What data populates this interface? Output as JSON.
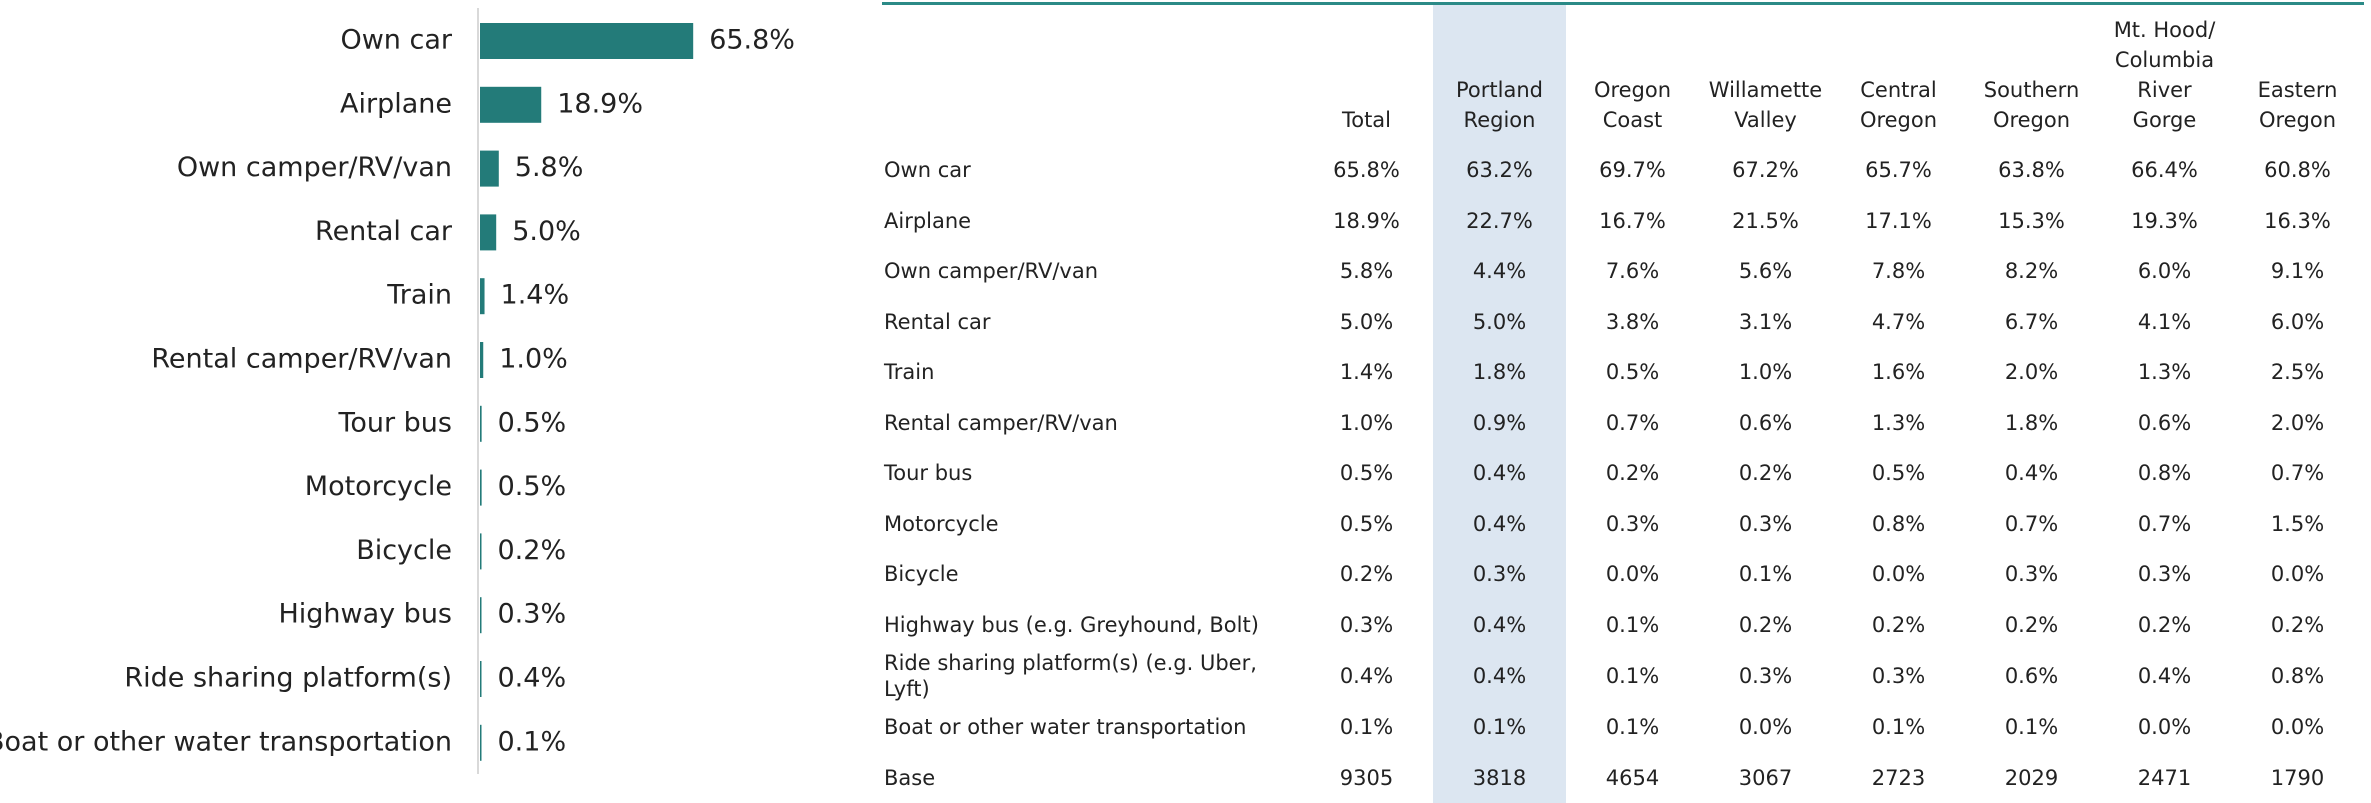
{
  "chart_data": {
    "type": "bar",
    "orientation": "horizontal",
    "categories": [
      "Own car",
      "Airplane",
      "Own camper/RV/van",
      "Rental car",
      "Train",
      "Rental camper/RV/van",
      "Tour bus",
      "Motorcycle",
      "Bicycle",
      "Highway bus",
      "Ride sharing platform(s)",
      "Boat or other water transportation"
    ],
    "values": [
      65.8,
      18.9,
      5.8,
      5.0,
      1.4,
      1.0,
      0.5,
      0.5,
      0.2,
      0.3,
      0.4,
      0.1
    ],
    "value_labels": [
      "65.8%",
      "18.9%",
      "5.8%",
      "5.0%",
      "1.4%",
      "1.0%",
      "0.5%",
      "0.5%",
      "0.2%",
      "0.3%",
      "0.4%",
      "0.1%"
    ],
    "color": "#237b79"
  },
  "table": {
    "columns": [
      "Total",
      "Portland Region",
      "Oregon Coast",
      "Willamette Valley",
      "Central Oregon",
      "Southern Oregon",
      "Mt. Hood/ Columbia River Gorge",
      "Eastern Oregon"
    ],
    "rows": [
      [
        "Own car",
        "65.8%",
        "63.2%",
        "69.7%",
        "67.2%",
        "65.7%",
        "63.8%",
        "66.4%",
        "60.8%"
      ],
      [
        "Airplane",
        "18.9%",
        "22.7%",
        "16.7%",
        "21.5%",
        "17.1%",
        "15.3%",
        "19.3%",
        "16.3%"
      ],
      [
        "Own camper/RV/van",
        "5.8%",
        "4.4%",
        "7.6%",
        "5.6%",
        "7.8%",
        "8.2%",
        "6.0%",
        "9.1%"
      ],
      [
        "Rental car",
        "5.0%",
        "5.0%",
        "3.8%",
        "3.1%",
        "4.7%",
        "6.7%",
        "4.1%",
        "6.0%"
      ],
      [
        "Train",
        "1.4%",
        "1.8%",
        "0.5%",
        "1.0%",
        "1.6%",
        "2.0%",
        "1.3%",
        "2.5%"
      ],
      [
        "Rental camper/RV/van",
        "1.0%",
        "0.9%",
        "0.7%",
        "0.6%",
        "1.3%",
        "1.8%",
        "0.6%",
        "2.0%"
      ],
      [
        "Tour bus",
        "0.5%",
        "0.4%",
        "0.2%",
        "0.2%",
        "0.5%",
        "0.4%",
        "0.8%",
        "0.7%"
      ],
      [
        "Motorcycle",
        "0.5%",
        "0.4%",
        "0.3%",
        "0.3%",
        "0.8%",
        "0.7%",
        "0.7%",
        "1.5%"
      ],
      [
        "Bicycle",
        "0.2%",
        "0.3%",
        "0.0%",
        "0.1%",
        "0.0%",
        "0.3%",
        "0.3%",
        "0.0%"
      ],
      [
        "Highway bus (e.g. Greyhound, Bolt)",
        "0.3%",
        "0.4%",
        "0.1%",
        "0.2%",
        "0.2%",
        "0.2%",
        "0.2%",
        "0.2%"
      ],
      [
        "Ride sharing platform(s) (e.g. Uber, Lyft)",
        "0.4%",
        "0.4%",
        "0.1%",
        "0.3%",
        "0.3%",
        "0.6%",
        "0.4%",
        "0.8%"
      ],
      [
        "Boat or other water transportation",
        "0.1%",
        "0.1%",
        "0.1%",
        "0.0%",
        "0.1%",
        "0.1%",
        "0.0%",
        "0.0%"
      ],
      [
        "Base",
        "9305",
        "3818",
        "4654",
        "3067",
        "2723",
        "2029",
        "2471",
        "1790"
      ]
    ]
  }
}
